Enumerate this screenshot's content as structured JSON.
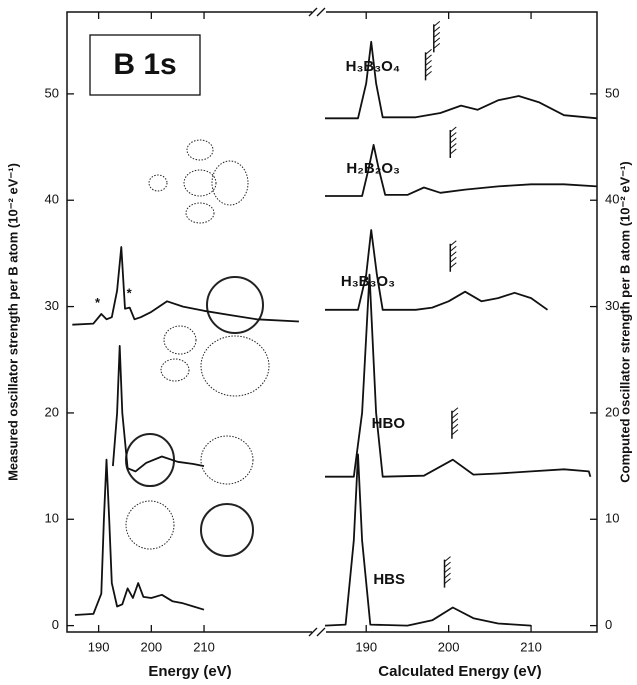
{
  "chart_data": [
    {
      "type": "line",
      "title": "B 1s",
      "xlabel": "Energy (eV)",
      "ylabel": "Measured oscillator strength per B atom (10⁻² eV⁻¹)",
      "xlim": [
        184,
        232
      ],
      "xticks": [
        190,
        200,
        210
      ],
      "ylim": [
        -0.6,
        57.7
      ],
      "yticks": [
        0,
        10,
        20,
        30,
        40,
        50
      ],
      "color": "#111111",
      "series": [
        {
          "x": [
            185.5,
            189,
            190.5,
            191,
            191.5,
            192,
            192.5,
            193.5,
            194.5,
            195.5,
            196.5,
            197.5,
            198.5,
            200,
            202,
            204,
            206,
            208,
            210
          ],
          "values": [
            1.0,
            1.1,
            3,
            10,
            15.6,
            10,
            4,
            1.8,
            2,
            3.5,
            2.6,
            4,
            2.7,
            2.6,
            2.9,
            2.3,
            2.1,
            1.8,
            1.5
          ]
        },
        {
          "x": [
            192.7,
            193.5,
            194,
            194.5,
            195.5,
            197,
            199,
            202,
            205,
            208,
            210
          ],
          "values": [
            15,
            20,
            26.3,
            20,
            14.8,
            14.5,
            15.3,
            15.9,
            15.4,
            15.2,
            15.0
          ]
        },
        {
          "x": [
            185,
            189,
            190.5,
            191.5,
            192.5,
            193.5,
            194.3,
            195,
            195.9,
            196.8,
            198,
            200,
            203,
            206,
            210,
            215,
            220,
            228
          ],
          "values": [
            28.3,
            28.4,
            29.3,
            28.8,
            29,
            31.5,
            35.6,
            29.8,
            29.9,
            28.8,
            29,
            29.5,
            30.5,
            30,
            29.6,
            29.2,
            28.8,
            28.6
          ]
        }
      ],
      "annotations": [
        {
          "text": "*",
          "x": 189.8,
          "y": 30.3
        },
        {
          "text": "*",
          "x": 195.8,
          "y": 31.2
        }
      ]
    },
    {
      "type": "line",
      "xlabel": "Calculated Energy (eV)",
      "ylabel": "Computed oscillator strength per B atom (10⁻² eV⁻¹)",
      "xlim": [
        185,
        218
      ],
      "xticks": [
        190,
        200,
        210
      ],
      "ylim": [
        -0.6,
        57.7
      ],
      "yticks": [
        0,
        10,
        20,
        30,
        40,
        50
      ],
      "color": "#111111",
      "series": [
        {
          "name": "HBS",
          "x": [
            185,
            187.5,
            188.5,
            189,
            189.5,
            190.5,
            195,
            198,
            200.5,
            203,
            206,
            210
          ],
          "values": [
            0,
            0.1,
            8,
            16.1,
            8,
            0.1,
            0,
            0.5,
            1.7,
            0.7,
            0.2,
            0
          ],
          "ip": [
            199.5
          ]
        },
        {
          "name": "HBO",
          "x": [
            185,
            188.5,
            189.5,
            190.4,
            191.2,
            192,
            197,
            200.5,
            203,
            206,
            210,
            214,
            217,
            217.2
          ],
          "values": [
            14,
            14,
            20,
            33,
            20,
            14,
            14.1,
            15.6,
            14.2,
            14.3,
            14.5,
            14.7,
            14.5,
            14
          ],
          "ip": [
            200.4
          ]
        },
        {
          "name": "H₃B₃O₃",
          "x": [
            185,
            189,
            190,
            190.6,
            191.3,
            192,
            196,
            198,
            200,
            202,
            204,
            206,
            208,
            210,
            212
          ],
          "values": [
            29.7,
            29.7,
            33,
            37.2,
            33,
            29.7,
            29.7,
            29.9,
            30.5,
            31.4,
            30.5,
            30.8,
            31.3,
            30.8,
            29.7
          ],
          "ip": [
            200.2
          ]
        },
        {
          "name": "H₂B₂O₃",
          "x": [
            185,
            189.5,
            190.3,
            190.9,
            191.5,
            192.3,
            195,
            197,
            199,
            202,
            206,
            210,
            214,
            218
          ],
          "values": [
            40.4,
            40.4,
            43,
            45.2,
            43,
            40.5,
            40.5,
            41.2,
            40.7,
            41,
            41.3,
            41.5,
            41.5,
            41.3
          ],
          "ip": [
            200.2
          ]
        },
        {
          "name": "H₃B₃O₄",
          "x": [
            185,
            189,
            190,
            190.6,
            191.2,
            192,
            196,
            199,
            201.5,
            203.5,
            206,
            208.5,
            211,
            214,
            218
          ],
          "values": [
            47.7,
            47.7,
            51,
            54.9,
            51,
            47.8,
            47.8,
            48.2,
            48.9,
            48.5,
            49.4,
            49.8,
            49.2,
            48,
            47.7
          ],
          "ip": [
            197.2,
            198.2
          ]
        }
      ]
    }
  ]
}
